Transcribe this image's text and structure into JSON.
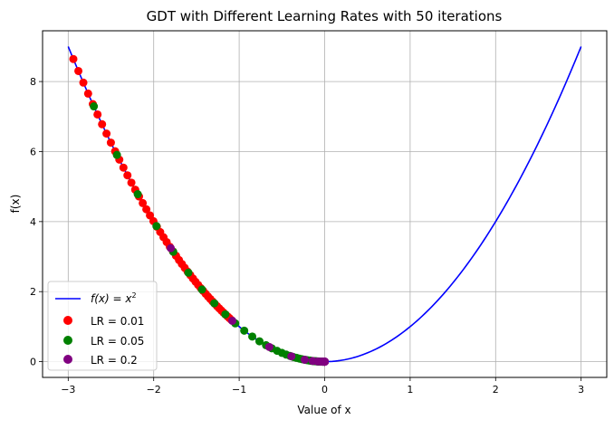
{
  "chart_data": {
    "type": "scatter",
    "title": "GDT with Different Learning Rates with 50 iterations",
    "xlabel": "Value of x",
    "ylabel": "f(x)",
    "xlim": [
      -3.3,
      3.3
    ],
    "ylim": [
      -0.45,
      9.45
    ],
    "xticks": [
      -3,
      -2,
      -1,
      0,
      1,
      2,
      3
    ],
    "xtick_labels": [
      "−3",
      "−2",
      "−1",
      "0",
      "1",
      "2",
      "3"
    ],
    "yticks": [
      0,
      2,
      4,
      6,
      8
    ],
    "ytick_labels": [
      "0",
      "2",
      "4",
      "6",
      "8"
    ],
    "grid": true,
    "legend_position": "lower-left",
    "curve": {
      "name": "f(x) = x²",
      "name_lhs": "f(x) = x",
      "name_sup": "2",
      "color": "#0000ff",
      "x_range": [
        -3,
        3
      ],
      "function": "x^2"
    },
    "series": [
      {
        "name": "LR = 0.01",
        "color": "#ff0000",
        "x": [
          -2.94,
          -2.881,
          -2.823,
          -2.767,
          -2.712,
          -2.657,
          -2.604,
          -2.552,
          -2.501,
          -2.451,
          -2.402,
          -2.354,
          -2.307,
          -2.261,
          -2.216,
          -2.172,
          -2.128,
          -2.086,
          -2.044,
          -2.003,
          -1.963,
          -1.924,
          -1.885,
          -1.848,
          -1.811,
          -1.774,
          -1.739,
          -1.704,
          -1.67,
          -1.637,
          -1.604,
          -1.572,
          -1.541,
          -1.51,
          -1.48,
          -1.45,
          -1.421,
          -1.393,
          -1.365,
          -1.338,
          -1.311,
          -1.285,
          -1.259,
          -1.234,
          -1.209,
          -1.185,
          -1.161,
          -1.138,
          -1.115,
          -1.093
        ]
      },
      {
        "name": "LR = 0.05",
        "color": "#008000",
        "x": [
          -2.7,
          -2.43,
          -2.187,
          -1.968,
          -1.771,
          -1.594,
          -1.435,
          -1.291,
          -1.162,
          -1.046,
          -0.941,
          -0.847,
          -0.763,
          -0.686,
          -0.618,
          -0.556,
          -0.5,
          -0.45,
          -0.405,
          -0.365,
          -0.328,
          -0.295,
          -0.266,
          -0.239,
          -0.215,
          -0.194,
          -0.174,
          -0.157,
          -0.141,
          -0.127,
          -0.114,
          -0.103,
          -0.093,
          -0.083,
          -0.075,
          -0.068,
          -0.061,
          -0.055,
          -0.049,
          -0.044,
          -0.04,
          -0.036,
          -0.032,
          -0.029,
          -0.026,
          -0.024,
          -0.021,
          -0.019,
          -0.017,
          -0.015
        ]
      },
      {
        "name": "LR = 0.2",
        "color": "#800080",
        "x": [
          -1.8,
          -1.08,
          -0.648,
          -0.389,
          -0.233,
          -0.14,
          -0.084,
          -0.05,
          -0.03,
          -0.018,
          -0.011,
          -0.0065,
          -0.0039,
          -0.0024,
          -0.0014,
          -0.0008,
          -0.0005,
          -0.0003,
          -0.0002,
          -0.0001,
          -6e-05,
          -4e-05,
          -2e-05,
          -1e-05,
          -8e-06,
          -5e-06,
          -3e-06,
          -2e-06,
          -1e-06,
          -6e-07,
          -4e-07,
          -2e-07,
          -1e-07,
          -8e-08,
          -5e-08,
          -3e-08,
          -2e-08,
          -1e-08,
          -6e-09,
          -4e-09,
          -2e-09,
          -1e-09,
          -8e-10,
          -5e-10,
          -3e-10,
          -2e-10,
          -1e-10,
          -6e-11,
          -4e-11,
          -2e-11
        ]
      }
    ]
  }
}
